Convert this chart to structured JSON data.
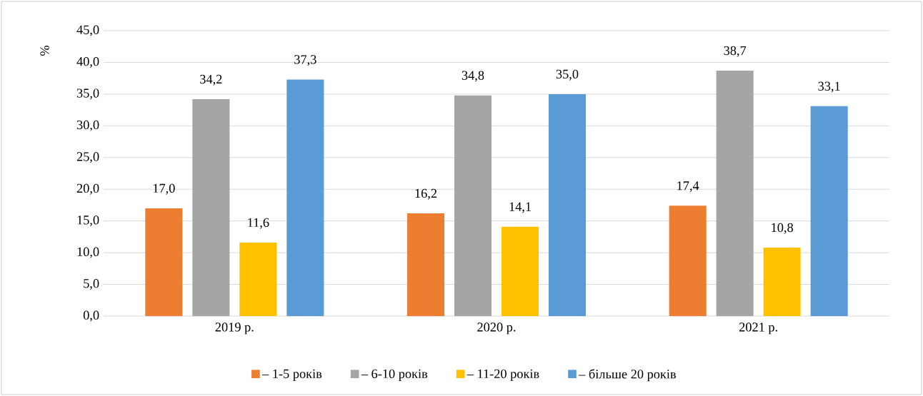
{
  "chart_data": {
    "type": "bar",
    "ylabel": "%",
    "categories": [
      "2019 р.",
      "2020 р.",
      "2021 р."
    ],
    "series": [
      {
        "name": "– 1-5 років",
        "color": "#ed7d31",
        "values": [
          17.0,
          16.2,
          17.4
        ],
        "value_labels": [
          "17,0",
          "16,2",
          "17,4"
        ]
      },
      {
        "name": "– 6-10 років",
        "color": "#a5a5a5",
        "values": [
          34.2,
          34.8,
          38.7
        ],
        "value_labels": [
          "34,2",
          "34,8",
          "38,7"
        ]
      },
      {
        "name": "– 11-20 років",
        "color": "#ffc000",
        "values": [
          11.6,
          14.1,
          10.8
        ],
        "value_labels": [
          "11,6",
          "14,1",
          "10,8"
        ]
      },
      {
        "name": "– більше 20 років",
        "color": "#5b9bd5",
        "values": [
          37.3,
          35.0,
          33.1
        ],
        "value_labels": [
          "37,3",
          "35,0",
          "33,1"
        ]
      }
    ],
    "ylim": [
      0,
      45
    ],
    "yticks": [
      {
        "value": 0,
        "label": "0,0"
      },
      {
        "value": 5,
        "label": "5,0"
      },
      {
        "value": 10,
        "label": "10,0"
      },
      {
        "value": 15,
        "label": "15,0"
      },
      {
        "value": 20,
        "label": "20,0"
      },
      {
        "value": 25,
        "label": "25,0"
      },
      {
        "value": 30,
        "label": "30,0"
      },
      {
        "value": 35,
        "label": "35,0"
      },
      {
        "value": 40,
        "label": "40,0"
      },
      {
        "value": 45,
        "label": "45,0"
      }
    ],
    "grid": "y",
    "legend": "bottom"
  }
}
